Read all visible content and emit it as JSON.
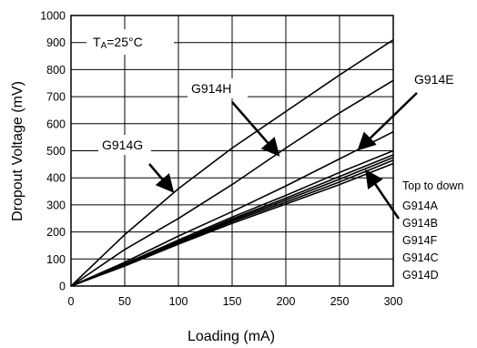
{
  "chart_data": {
    "type": "line",
    "xlabel": "Loading (mA)",
    "ylabel": "Dropout Voltage (mV)",
    "xlim": [
      0,
      300
    ],
    "ylim": [
      0,
      1000
    ],
    "x_ticks": [
      0,
      50,
      100,
      150,
      200,
      250,
      300
    ],
    "y_ticks": [
      0,
      100,
      200,
      300,
      400,
      500,
      600,
      700,
      800,
      900,
      1000
    ],
    "grid": true,
    "condition_label": {
      "main": "T",
      "sub": "A",
      "rest": "=25°C"
    },
    "series": [
      {
        "name": "G914G",
        "x": [
          0,
          50,
          100,
          150,
          200,
          250,
          300
        ],
        "y": [
          0,
          190,
          360,
          510,
          645,
          780,
          910
        ]
      },
      {
        "name": "G914H",
        "x": [
          0,
          50,
          100,
          150,
          200,
          250,
          300
        ],
        "y": [
          0,
          135,
          250,
          375,
          510,
          640,
          760
        ]
      },
      {
        "name": "G914E",
        "x": [
          0,
          50,
          100,
          150,
          200,
          250,
          300
        ],
        "y": [
          0,
          88,
          185,
          275,
          370,
          470,
          570
        ]
      },
      {
        "name": "G914A",
        "x": [
          0,
          50,
          100,
          150,
          200,
          250,
          300
        ],
        "y": [
          0,
          82,
          170,
          255,
          335,
          420,
          500
        ]
      },
      {
        "name": "G914B",
        "x": [
          0,
          50,
          100,
          150,
          200,
          250,
          300
        ],
        "y": [
          0,
          80,
          165,
          248,
          325,
          405,
          485
        ]
      },
      {
        "name": "G914F",
        "x": [
          0,
          50,
          100,
          150,
          200,
          250,
          300
        ],
        "y": [
          0,
          78,
          162,
          243,
          318,
          395,
          475
        ]
      },
      {
        "name": "G914C",
        "x": [
          0,
          50,
          100,
          150,
          200,
          250,
          300
        ],
        "y": [
          0,
          76,
          158,
          238,
          310,
          385,
          465
        ]
      },
      {
        "name": "G914D",
        "x": [
          0,
          50,
          100,
          150,
          200,
          250,
          300
        ],
        "y": [
          0,
          74,
          155,
          232,
          303,
          375,
          453
        ]
      }
    ],
    "annotations": [
      {
        "text": "G914G",
        "target_series": "G914G"
      },
      {
        "text": "G914H",
        "target_series": "G914H"
      },
      {
        "text": "G914E",
        "target_series": "G914E"
      }
    ],
    "legend": {
      "title": "Top to down",
      "items": [
        "G914A",
        "G914B",
        "G914F",
        "G914C",
        "G914D"
      ]
    }
  }
}
